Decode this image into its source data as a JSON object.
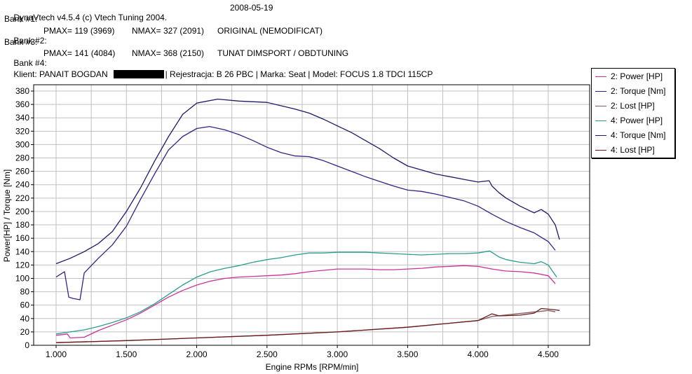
{
  "header": {
    "line1_left": "DynaVtech v4.5.4 (c) Vtech Tuning 2004.",
    "line1_date": "2008-05-19",
    "bank1": "Bank #1:",
    "bank2_label": "Bank #2:",
    "bank2_pmax": "PMAX= 119 (3969)",
    "bank2_nmax": "NMAX= 327 (2091)",
    "bank2_desc": "ORIGINAL (NEMODIFICAT)",
    "bank3": "Bank #3:",
    "bank4_label": "Bank #4:",
    "bank4_pmax": "PMAX= 141 (4084)",
    "bank4_nmax": "NMAX= 368 (2150)",
    "bank4_desc": "TUNAT DIMSPORT / OBDTUNING",
    "client_prefix": "Klient: PANAIT BOGDAN",
    "client_suffix": "| Rejestracja: B 26 PBC | Marka: Seat | Model: FOCUS 1.8 TDCI 115CP"
  },
  "colors": {
    "power2": "#cc3399",
    "torque2": "#3a1f8a",
    "lost2": "#8a5a5a",
    "power4": "#2a9d8f",
    "torque4": "#1b1b6b",
    "lost4": "#6b1b1b",
    "grid": "#c0c0c0"
  },
  "chart_data": {
    "type": "line",
    "xlabel": "Engine RPMs [RPM/min]",
    "ylabel": "Power[HP] / Torque [Nm]",
    "xlim": [
      1000,
      4580
    ],
    "ylim": [
      0,
      380
    ],
    "x_ticks": [
      "1.000",
      "1.500",
      "2.000",
      "2.500",
      "3.000",
      "3.500",
      "4.000",
      "4.500"
    ],
    "y_ticks": [
      "0",
      "20",
      "40",
      "60",
      "80",
      "100",
      "120",
      "140",
      "160",
      "180",
      "200",
      "220",
      "240",
      "260",
      "280",
      "300",
      "320",
      "340",
      "360",
      "380"
    ],
    "grid": true,
    "legend_position": "top-right",
    "series": [
      {
        "name": "2: Power [HP]",
        "color_key": "power2",
        "x": [
          1000,
          1050,
          1080,
          1100,
          1200,
          1300,
          1400,
          1500,
          1600,
          1700,
          1800,
          1900,
          2000,
          2100,
          2200,
          2300,
          2400,
          2500,
          2600,
          2700,
          2800,
          2900,
          3000,
          3100,
          3200,
          3300,
          3400,
          3500,
          3600,
          3700,
          3800,
          3900,
          4000,
          4100,
          4200,
          4300,
          4400,
          4500,
          4550
        ],
        "y": [
          15,
          16,
          17,
          11,
          12,
          22,
          30,
          38,
          48,
          60,
          72,
          82,
          90,
          96,
          100,
          102,
          103,
          104,
          105,
          107,
          110,
          112,
          114,
          114,
          114,
          113,
          113,
          114,
          115,
          117,
          118,
          119,
          118,
          114,
          111,
          110,
          108,
          104,
          92
        ]
      },
      {
        "name": "2: Torque [Nm]",
        "color_key": "torque2",
        "x": [
          1000,
          1060,
          1090,
          1120,
          1170,
          1200,
          1300,
          1400,
          1500,
          1600,
          1700,
          1800,
          1900,
          2000,
          2091,
          2200,
          2300,
          2400,
          2500,
          2600,
          2700,
          2800,
          2900,
          3000,
          3100,
          3200,
          3300,
          3400,
          3500,
          3600,
          3700,
          3800,
          3900,
          4000,
          4100,
          4200,
          4300,
          4400,
          4500,
          4550
        ],
        "y": [
          102,
          110,
          72,
          70,
          68,
          108,
          130,
          150,
          178,
          218,
          256,
          292,
          312,
          324,
          327,
          322,
          315,
          306,
          296,
          288,
          283,
          282,
          276,
          268,
          260,
          252,
          245,
          238,
          232,
          230,
          226,
          221,
          216,
          208,
          196,
          185,
          176,
          168,
          155,
          142
        ]
      },
      {
        "name": "2: Lost [HP]",
        "color_key": "lost2",
        "x": [
          1000,
          1500,
          2000,
          2500,
          3000,
          3500,
          4000,
          4100,
          4500,
          4550
        ],
        "y": [
          4,
          7,
          11,
          15,
          20,
          27,
          37,
          43,
          52,
          50
        ]
      },
      {
        "name": "4: Power [HP]",
        "color_key": "power4",
        "x": [
          1000,
          1100,
          1200,
          1300,
          1400,
          1500,
          1600,
          1700,
          1800,
          1900,
          2000,
          2100,
          2200,
          2300,
          2400,
          2500,
          2600,
          2700,
          2800,
          2900,
          3000,
          3100,
          3200,
          3300,
          3400,
          3500,
          3600,
          3700,
          3800,
          3900,
          4000,
          4084,
          4150,
          4200,
          4300,
          4400,
          4450,
          4500,
          4560
        ],
        "y": [
          17,
          20,
          23,
          28,
          34,
          41,
          50,
          62,
          76,
          90,
          102,
          110,
          115,
          119,
          124,
          128,
          131,
          135,
          138,
          138,
          139,
          139,
          139,
          138,
          137,
          136,
          135,
          136,
          137,
          137,
          138,
          141,
          132,
          128,
          124,
          122,
          125,
          120,
          102
        ]
      },
      {
        "name": "4: Torque [Nm]",
        "color_key": "torque4",
        "x": [
          1000,
          1100,
          1200,
          1300,
          1400,
          1500,
          1600,
          1700,
          1800,
          1900,
          2000,
          2150,
          2300,
          2500,
          2600,
          2700,
          2800,
          2900,
          3000,
          3100,
          3200,
          3300,
          3400,
          3500,
          3600,
          3700,
          3800,
          3900,
          4000,
          4080,
          4100,
          4150,
          4200,
          4300,
          4400,
          4450,
          4500,
          4550,
          4580
        ],
        "y": [
          122,
          130,
          140,
          152,
          170,
          200,
          235,
          275,
          312,
          345,
          362,
          368,
          365,
          363,
          358,
          353,
          347,
          338,
          328,
          318,
          306,
          294,
          280,
          268,
          262,
          256,
          252,
          248,
          244,
          246,
          238,
          228,
          220,
          208,
          198,
          203,
          196,
          180,
          158
        ]
      },
      {
        "name": "4: Lost [HP]",
        "color_key": "lost4",
        "x": [
          1000,
          1500,
          2000,
          2500,
          3000,
          3500,
          4000,
          4050,
          4100,
          4150,
          4300,
          4400,
          4450,
          4500,
          4550,
          4580
        ],
        "y": [
          4,
          7,
          11,
          15,
          20,
          27,
          37,
          42,
          47,
          44,
          45,
          48,
          55,
          54,
          53,
          52
        ]
      }
    ]
  }
}
